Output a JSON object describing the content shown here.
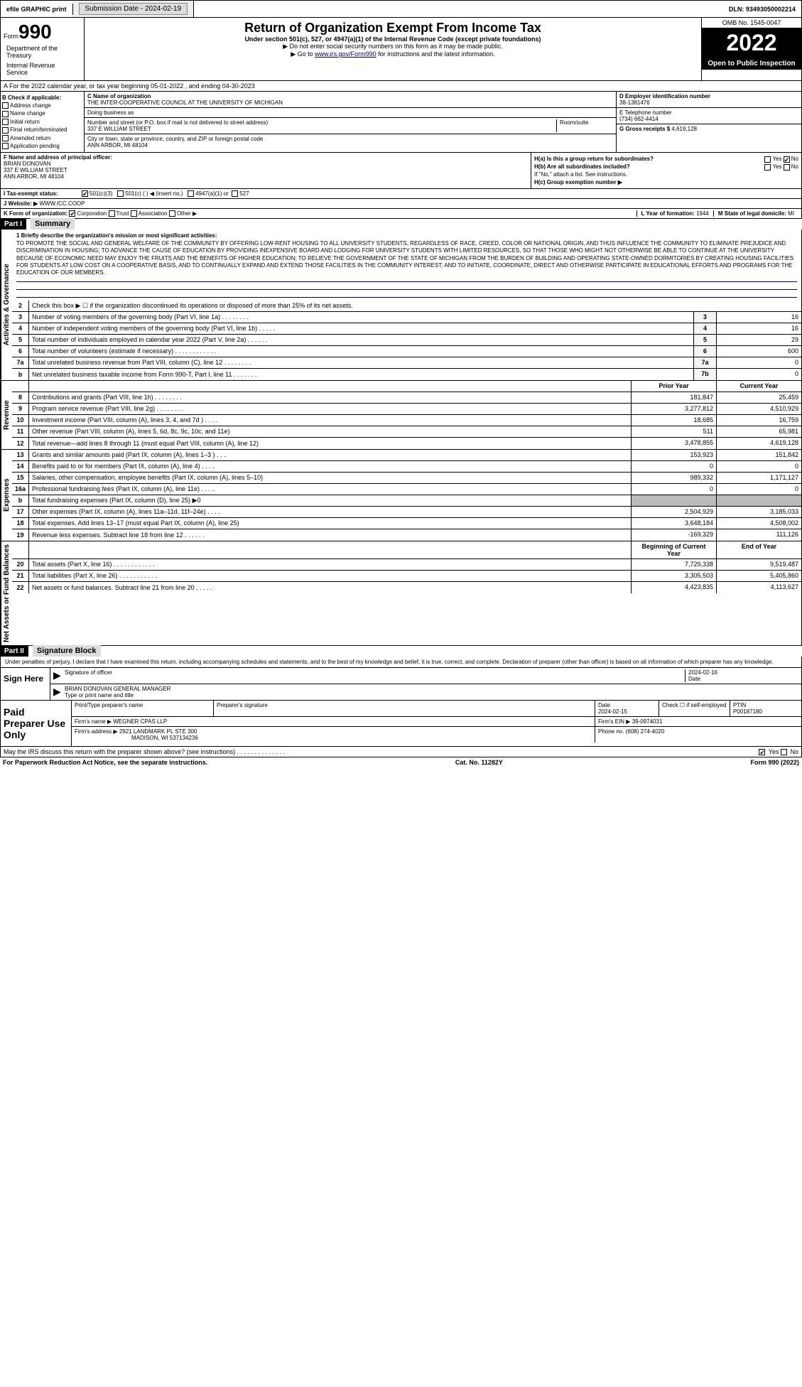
{
  "topbar": {
    "efile": "efile GRAPHIC print",
    "submission_label": "Submission Date - 2024-02-19",
    "dln_label": "DLN: 93493050002214"
  },
  "header": {
    "form_prefix": "Form",
    "form_number": "990",
    "main_title": "Return of Organization Exempt From Income Tax",
    "subtitle": "Under section 501(c), 527, or 4947(a)(1) of the Internal Revenue Code (except private foundations)",
    "instr1": "▶ Do not enter social security numbers on this form as it may be made public.",
    "instr2_prefix": "▶ Go to ",
    "instr2_link": "www.irs.gov/Form990",
    "instr2_suffix": " for instructions and the latest information.",
    "dept": "Department of the Treasury",
    "irs": "Internal Revenue Service",
    "omb": "OMB No. 1545-0047",
    "year": "2022",
    "inspection": "Open to Public Inspection"
  },
  "row_a": "A For the 2022 calendar year, or tax year beginning 05-01-2022   , and ending 04-30-2023",
  "section_b": {
    "header": "B Check if applicable:",
    "items": [
      "Address change",
      "Name change",
      "Initial return",
      "Final return/terminated",
      "Amended return",
      "Application pending"
    ]
  },
  "section_c": {
    "name_label": "C Name of organization",
    "name": "THE INTER-COOPERATIVE COUNCIL AT THE UNIVERSITY OF MICHIGAN",
    "dba_label": "Doing business as",
    "addr_label": "Number and street (or P.O. box if mail is not delivered to street address)",
    "room_label": "Room/suite",
    "addr": "337 E WILLIAM STREET",
    "city_label": "City or town, state or province, country, and ZIP or foreign postal code",
    "city": "ANN ARBOR, MI  48104"
  },
  "section_d": {
    "ein_label": "D Employer identification number",
    "ein": "38-1381476",
    "phone_label": "E Telephone number",
    "phone": "(734) 662-4414",
    "gross_label": "G Gross receipts $",
    "gross": "4,619,128"
  },
  "section_f": {
    "label": "F  Name and address of principal officer:",
    "name": "BRIAN DONOVAN",
    "addr1": "337 E WILLIAM STREET",
    "addr2": "ANN ARBOR, MI  48104"
  },
  "section_h": {
    "ha_label": "H(a)  Is this a group return for subordinates?",
    "hb_label": "H(b)  Are all subordinates included?",
    "hb_note": "If \"No,\" attach a list. See instructions.",
    "hc_label": "H(c)  Group exemption number ▶",
    "yes": "Yes",
    "no": "No"
  },
  "row_i": {
    "label": "I   Tax-exempt status:",
    "opt1": "501(c)(3)",
    "opt2": "501(c) (  ) ◀ (insert no.)",
    "opt3": "4947(a)(1) or",
    "opt4": "527"
  },
  "row_j": {
    "label": "J  Website: ▶",
    "value": "WWW.ICC.COOP"
  },
  "row_k": {
    "label": "K Form of organization:",
    "opts": [
      "Corporation",
      "Trust",
      "Association",
      "Other ▶"
    ],
    "l_label": "L Year of formation:",
    "l_val": "1944",
    "m_label": "M State of legal domicile:",
    "m_val": "MI"
  },
  "part1": {
    "num": "Part I",
    "title": "Summary"
  },
  "mission": {
    "label": "1  Briefly describe the organization's mission or most significant activities:",
    "text": "TO PROMOTE THE SOCIAL AND GENERAL WELFARE OF THE COMMUNITY BY OFFERING LOW-RENT HOUSING TO ALL UNIVERSITY STUDENTS, REGARDLESS OF RACE, CREED, COLOR OR NATIONAL ORIGIN, AND THUS INFLUENCE THE COMMUNITY TO ELIMINATE PREJUDICE AND DISCRIMINATION IN HOUSING; TO ADVANCE THE CAUSE OF EDUCATION BY PROVIDING INEXPENSIVE BOARD AND LODGING FOR UNIVERSITY STUDENTS WITH LIMITED RESOURCES, SO THAT THOSE WHO MIGHT NOT OTHERWISE BE ABLE TO CONTINUE AT THE UNIVERSITY BECAUSE OF ECONOMIC NEED MAY ENJOY THE FRUITS AND THE BENEFITS OF HIGHER EDUCATION; TO RELIEVE THE GOVERNMENT OF THE STATE OF MICHIGAN FROM THE BURDEN OF BUILDING AND OPERATING STATE-OWNED DORMITORIES BY CREATING HOUSING FACILITIES FOR STUDENTS AT LOW COST ON A COOPERATIVE BASIS, AND TO CONTINUALLY EXPAND AND EXTEND THOSE FACILITIES IN THE COMMUNITY INTEREST; AND TO INITIATE, COORDINATE, DIRECT AND OTHERWISE PARTICIPATE IN EDUCATIONAL EFFORTS AND PROGRAMS FOR THE EDUCATION OF OUR MEMBERS."
  },
  "gov_lines": {
    "line2": "Check this box ▶ ☐ if the organization discontinued its operations or disposed of more than 25% of its net assets.",
    "lines": [
      {
        "n": "3",
        "t": "Number of voting members of the governing body (Part VI, line 1a)  .    .    .    .    .    .    .    .",
        "b": "3",
        "v": "16"
      },
      {
        "n": "4",
        "t": "Number of independent voting members of the governing body (Part VI, line 1b)    .    .    .    .    .",
        "b": "4",
        "v": "16"
      },
      {
        "n": "5",
        "t": "Total number of individuals employed in calendar year 2022 (Part V, line 2a)    .    .    .    .    .    .",
        "b": "5",
        "v": "29"
      },
      {
        "n": "6",
        "t": "Total number of volunteers (estimate if necessary)  .    .    .    .    .    .    .    .    .    .    .    .",
        "b": "6",
        "v": "600"
      },
      {
        "n": "7a",
        "t": "Total unrelated business revenue from Part VIII, column (C), line 12  .    .    .    .    .    .    .    .",
        "b": "7a",
        "v": "0"
      },
      {
        "n": "b",
        "t": "Net unrelated business taxable income from Form 990-T, Part I, line 11  .    .    .    .    .    .    .",
        "b": "7b",
        "v": "0"
      }
    ]
  },
  "sidebar": {
    "gov": "Activities & Governance",
    "rev": "Revenue",
    "exp": "Expenses",
    "net": "Net Assets or Fund Balances"
  },
  "cols": {
    "prior": "Prior Year",
    "current": "Current Year",
    "boy": "Beginning of Current Year",
    "eoy": "End of Year"
  },
  "rev_lines": [
    {
      "n": "8",
      "t": "Contributions and grants (Part VIII, line 1h)   .    .    .    .    .    .    .    .",
      "p": "181,847",
      "c": "25,459"
    },
    {
      "n": "9",
      "t": "Program service revenue (Part VIII, line 2g)   .    .    .    .    .    .    .    .",
      "p": "3,277,812",
      "c": "4,510,929"
    },
    {
      "n": "10",
      "t": "Investment income (Part VIII, column (A), lines 3, 4, and 7d )   .    .    .    .",
      "p": "18,685",
      "c": "16,759"
    },
    {
      "n": "11",
      "t": "Other revenue (Part VIII, column (A), lines 5, 6d, 8c, 9c, 10c, and 11e)",
      "p": "511",
      "c": "65,981"
    },
    {
      "n": "12",
      "t": "Total revenue—add lines 8 through 11 (must equal Part VIII, column (A), line 12)",
      "p": "3,478,855",
      "c": "4,619,128"
    }
  ],
  "exp_lines": [
    {
      "n": "13",
      "t": "Grants and similar amounts paid (Part IX, column (A), lines 1–3 )   .    .    .",
      "p": "153,923",
      "c": "151,842"
    },
    {
      "n": "14",
      "t": "Benefits paid to or for members (Part IX, column (A), line 4)  .    .    .    .",
      "p": "0",
      "c": "0"
    },
    {
      "n": "15",
      "t": "Salaries, other compensation, employee benefits (Part IX, column (A), lines 5–10)",
      "p": "989,332",
      "c": "1,171,127"
    },
    {
      "n": "16a",
      "t": "Professional fundraising fees (Part IX, column (A), line 11e)   .    .    .    .",
      "p": "0",
      "c": "0"
    },
    {
      "n": "b",
      "t": "Total fundraising expenses (Part IX, column (D), line 25) ▶0",
      "p": "",
      "c": "",
      "shaded": true
    },
    {
      "n": "17",
      "t": "Other expenses (Part IX, column (A), lines 11a–11d, 11f–24e)   .    .    .    .",
      "p": "2,504,929",
      "c": "3,185,033"
    },
    {
      "n": "18",
      "t": "Total expenses. Add lines 13–17 (must equal Part IX, column (A), line 25)",
      "p": "3,648,184",
      "c": "4,508,002"
    },
    {
      "n": "19",
      "t": "Revenue less expenses. Subtract line 18 from line 12  .    .    .    .    .    .",
      "p": "-169,329",
      "c": "111,126"
    }
  ],
  "net_lines": [
    {
      "n": "20",
      "t": "Total assets (Part X, line 16)  .    .    .    .    .    .    .    .    .    .    .    .",
      "p": "7,729,338",
      "c": "9,519,487"
    },
    {
      "n": "21",
      "t": "Total liabilities (Part X, line 26)  .    .    .    .    .    .    .    .    .    .    .",
      "p": "3,305,503",
      "c": "5,405,860"
    },
    {
      "n": "22",
      "t": "Net assets or fund balances. Subtract line 21 from line 20  .    .    .    .    .",
      "p": "4,423,835",
      "c": "4,113,627"
    }
  ],
  "part2": {
    "num": "Part II",
    "title": "Signature Block"
  },
  "sig": {
    "declaration": "Under penalties of perjury, I declare that I have examined this return, including accompanying schedules and statements, and to the best of my knowledge and belief, it is true, correct, and complete. Declaration of preparer (other than officer) is based on all information of which preparer has any knowledge.",
    "sign_here": "Sign Here",
    "sig_officer": "Signature of officer",
    "date": "Date",
    "date_val": "2024-02-16",
    "name_title": "BRIAN DONOVAN  GENERAL MANAGER",
    "type_name": "Type or print name and title"
  },
  "paid": {
    "label": "Paid Preparer Use Only",
    "print_name_label": "Print/Type preparer's name",
    "preparer_sig_label": "Preparer's signature",
    "date_label": "Date",
    "date_val": "2024-02-15",
    "check_label": "Check ☐ if self-employed",
    "ptin_label": "PTIN",
    "ptin": "P00187180",
    "firm_name_label": "Firm's name     ▶",
    "firm_name": "WEGNER CPAS LLP",
    "firm_ein_label": "Firm's EIN ▶",
    "firm_ein": "39-0974031",
    "firm_addr_label": "Firm's address ▶",
    "firm_addr1": "2921 LANDMARK PL STE 300",
    "firm_addr2": "MADISON, WI  537134236",
    "phone_label": "Phone no.",
    "phone": "(608) 274-4020"
  },
  "footer": {
    "discuss": "May the IRS discuss this return with the preparer shown above? (see instructions)   .    .    .    .    .    .    .    .    .    .    .    .    .    .",
    "yes": "Yes",
    "no": "No",
    "paperwork": "For Paperwork Reduction Act Notice, see the separate instructions.",
    "cat": "Cat. No. 11282Y",
    "form": "Form 990 (2022)"
  }
}
